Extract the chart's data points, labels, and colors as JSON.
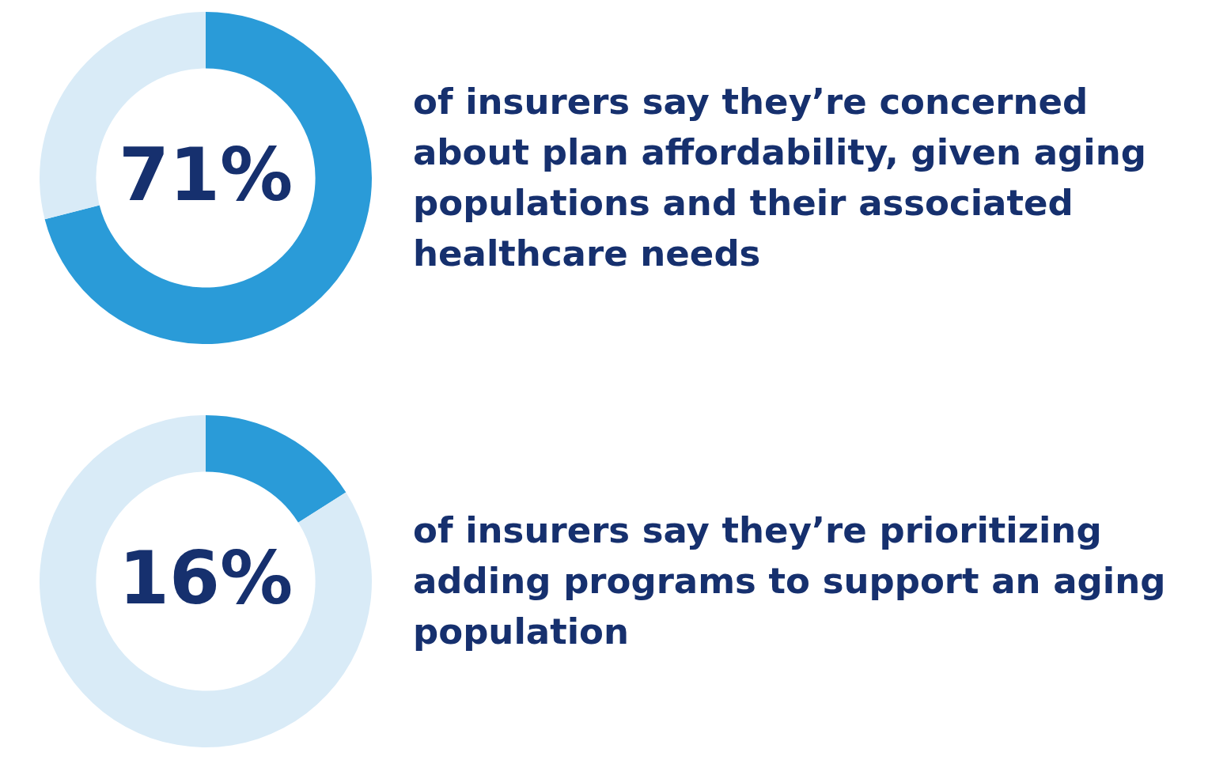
{
  "chart_data": [
    {
      "type": "donut",
      "title": "of insurers say they’re concerned about plan affordability, given aging populations and their associated healthcare needs",
      "categories": [
        null,
        null
      ],
      "values": [
        71,
        29
      ],
      "colors": [
        "#2a9bd8",
        "#d9ebf7"
      ],
      "value_labels": [
        "71%",
        null
      ]
    },
    {
      "type": "donut",
      "title": "of insurers say they’re prioritizing adding programs to support an aging population",
      "categories": [
        null,
        null
      ],
      "values": [
        16,
        84
      ],
      "colors": [
        "#2a9bd8",
        "#d9ebf7"
      ],
      "value_labels": [
        "16%",
        null
      ]
    }
  ]
}
